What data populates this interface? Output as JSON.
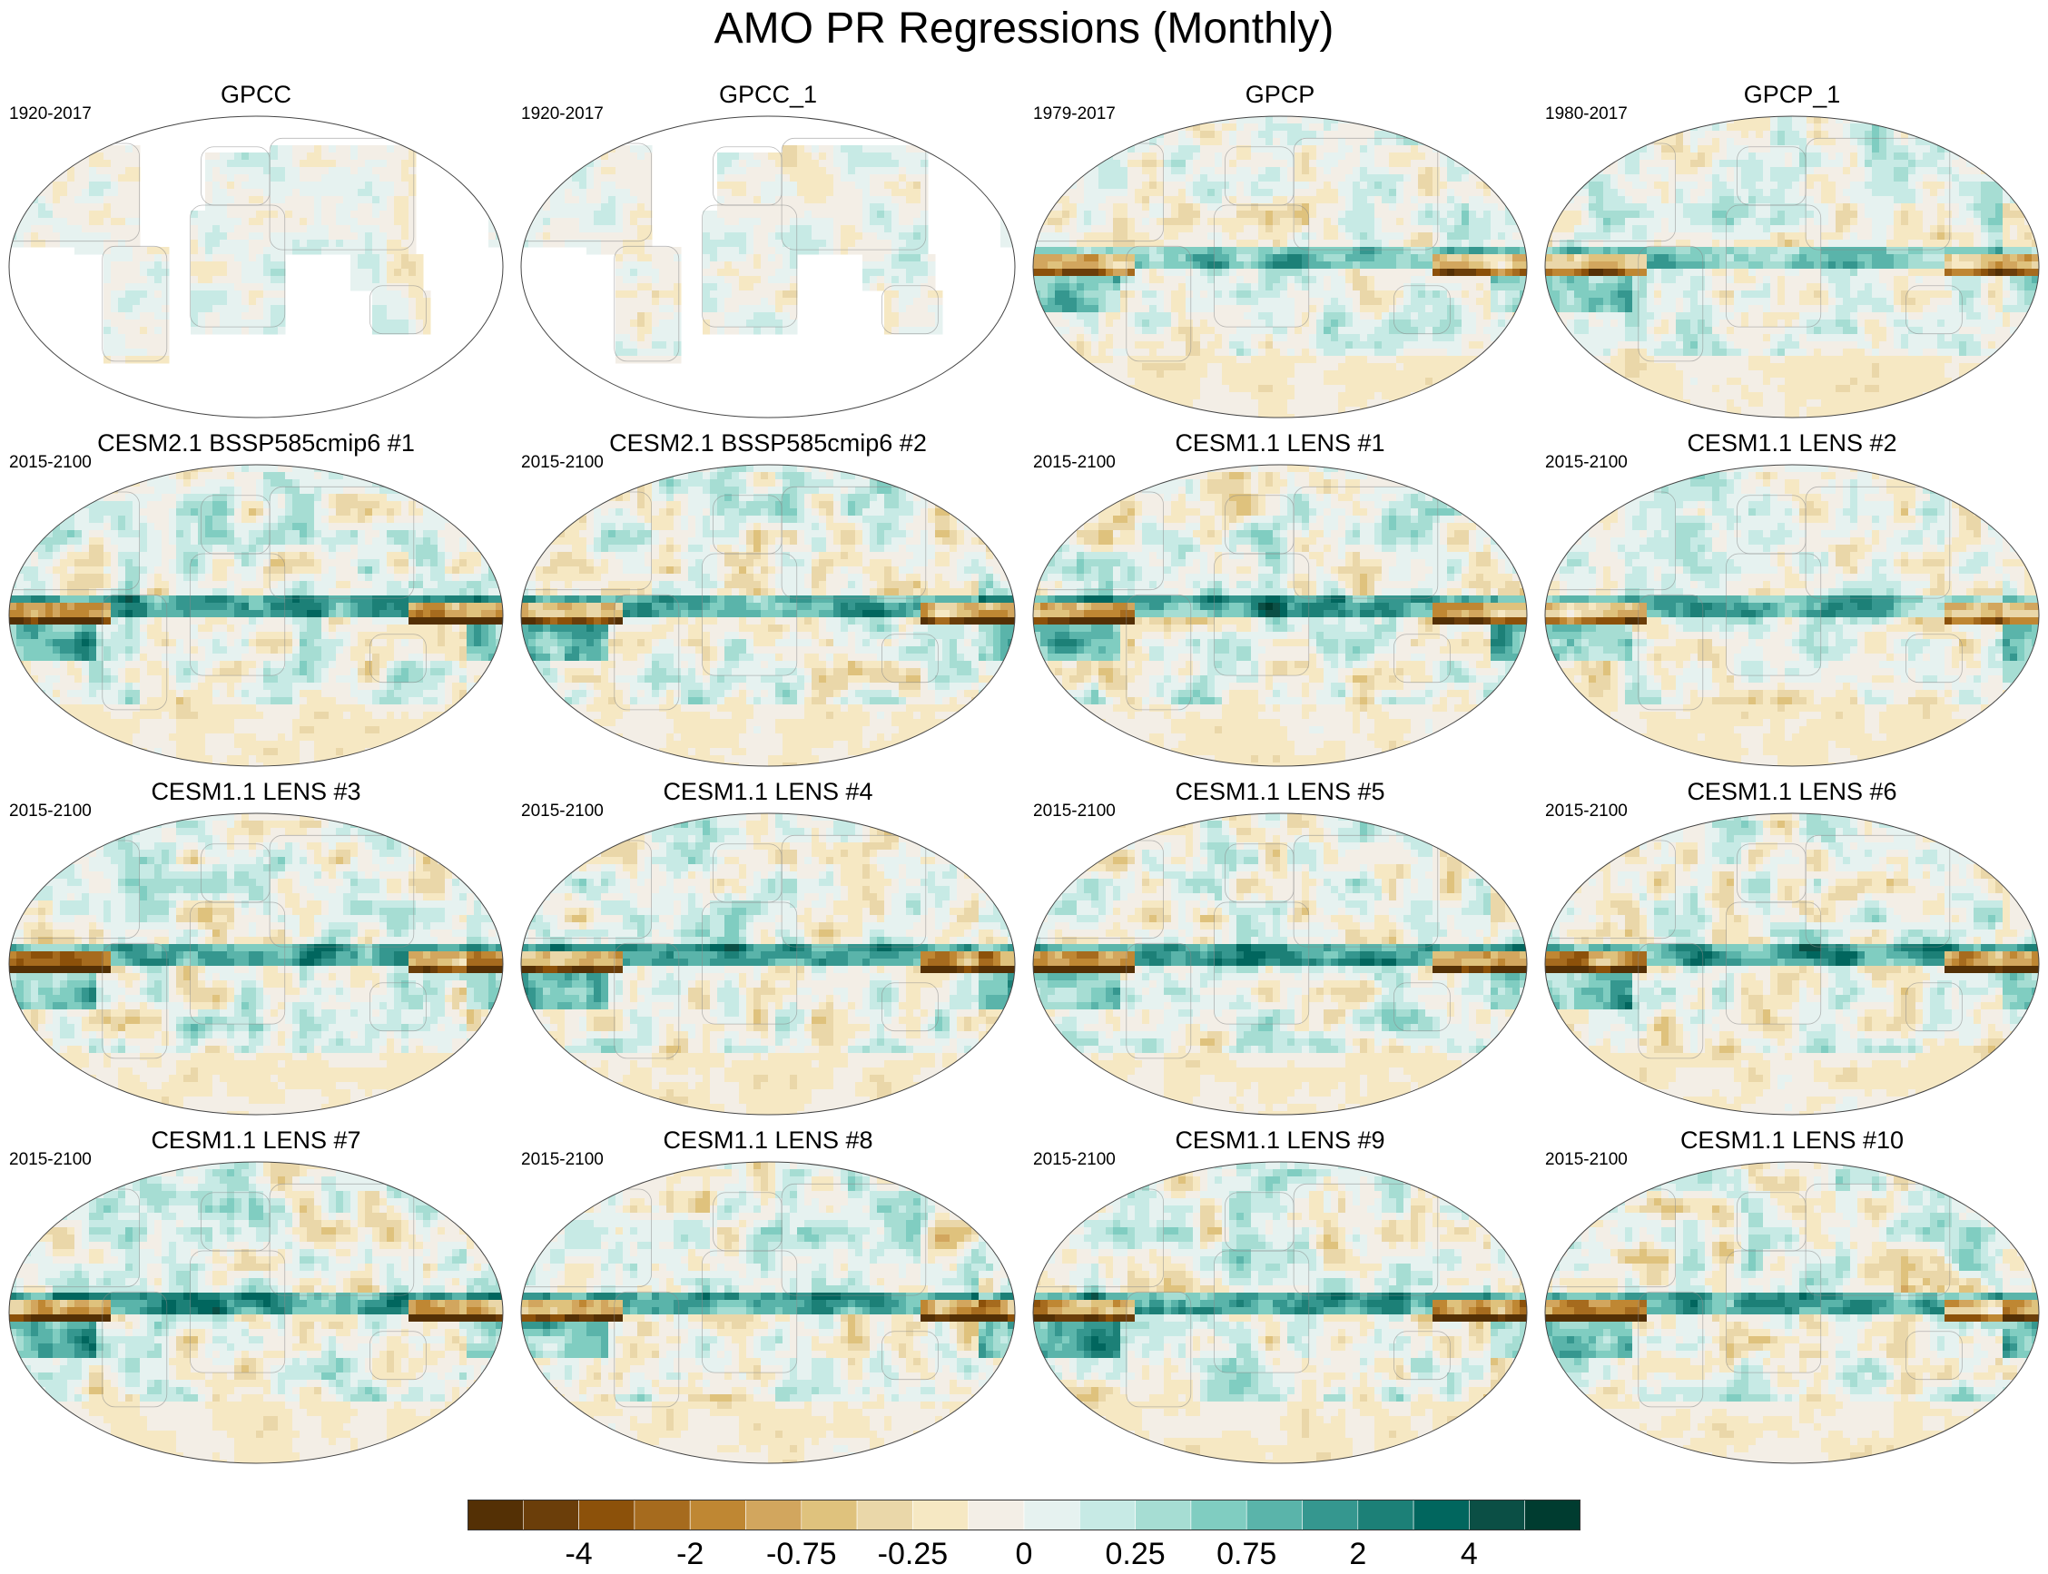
{
  "title": "AMO PR Regressions (Monthly)",
  "chart_data": {
    "type": "heatmap",
    "title": "AMO PR Regressions (Monthly)",
    "panels": [
      {
        "name": "GPCC",
        "period": "1920-2017",
        "coverage": "land-only",
        "equatorial_pacific_anomaly": 0,
        "strength": 0.6
      },
      {
        "name": "GPCC_1",
        "period": "1920-2017",
        "coverage": "land-only",
        "equatorial_pacific_anomaly": 0,
        "strength": 0.6
      },
      {
        "name": "GPCP",
        "period": "1979-2017",
        "coverage": "global",
        "equatorial_pacific_anomaly": -3,
        "strength": 0.9
      },
      {
        "name": "GPCP_1",
        "period": "1980-2017",
        "coverage": "global",
        "equatorial_pacific_anomaly": -3,
        "strength": 0.9
      },
      {
        "name": "CESM2.1 BSSP585cmip6 #1",
        "period": "2015-2100",
        "coverage": "global",
        "equatorial_pacific_anomaly": -4,
        "strength": 1.0
      },
      {
        "name": "CESM2.1 BSSP585cmip6 #2",
        "period": "2015-2100",
        "coverage": "global",
        "equatorial_pacific_anomaly": -4,
        "strength": 1.0
      },
      {
        "name": "CESM1.1 LENS #1",
        "period": "2015-2100",
        "coverage": "global",
        "equatorial_pacific_anomaly": -4,
        "strength": 1.0
      },
      {
        "name": "CESM1.1 LENS #2",
        "period": "2015-2100",
        "coverage": "global",
        "equatorial_pacific_anomaly": -3,
        "strength": 0.9
      },
      {
        "name": "CESM1.1 LENS #3",
        "period": "2015-2100",
        "coverage": "global",
        "equatorial_pacific_anomaly": -4,
        "strength": 1.0
      },
      {
        "name": "CESM1.1 LENS #4",
        "period": "2015-2100",
        "coverage": "global",
        "equatorial_pacific_anomaly": -4,
        "strength": 1.0
      },
      {
        "name": "CESM1.1 LENS #5",
        "period": "2015-2100",
        "coverage": "global",
        "equatorial_pacific_anomaly": -4,
        "strength": 1.0
      },
      {
        "name": "CESM1.1 LENS #6",
        "period": "2015-2100",
        "coverage": "global",
        "equatorial_pacific_anomaly": -4,
        "strength": 1.0
      },
      {
        "name": "CESM1.1 LENS #7",
        "period": "2015-2100",
        "coverage": "global",
        "equatorial_pacific_anomaly": -4,
        "strength": 1.0
      },
      {
        "name": "CESM1.1 LENS #8",
        "period": "2015-2100",
        "coverage": "global",
        "equatorial_pacific_anomaly": -4,
        "strength": 1.0
      },
      {
        "name": "CESM1.1 LENS #9",
        "period": "2015-2100",
        "coverage": "global",
        "equatorial_pacific_anomaly": -4,
        "strength": 1.0
      },
      {
        "name": "CESM1.1 LENS #10",
        "period": "2015-2100",
        "coverage": "global",
        "equatorial_pacific_anomaly": -4,
        "strength": 1.0
      }
    ],
    "colorbar": {
      "labels": [
        "-4",
        "-2",
        "-0.75",
        "-0.25",
        "0",
        "0.25",
        "0.75",
        "2",
        "4"
      ],
      "colors": [
        "#543005",
        "#6b3e0a",
        "#8c510a",
        "#a66b1e",
        "#bf8733",
        "#d2a65e",
        "#dfc27d",
        "#ead7a9",
        "#f6e8c3",
        "#f3eee6",
        "#e6f2f0",
        "#c7eae5",
        "#a6ddd3",
        "#80cdc1",
        "#5ab4aa",
        "#35978f",
        "#1c8077",
        "#01665e",
        "#0b4f45",
        "#003c30"
      ]
    },
    "projection": "Robinson (global, centered on 30E)"
  }
}
